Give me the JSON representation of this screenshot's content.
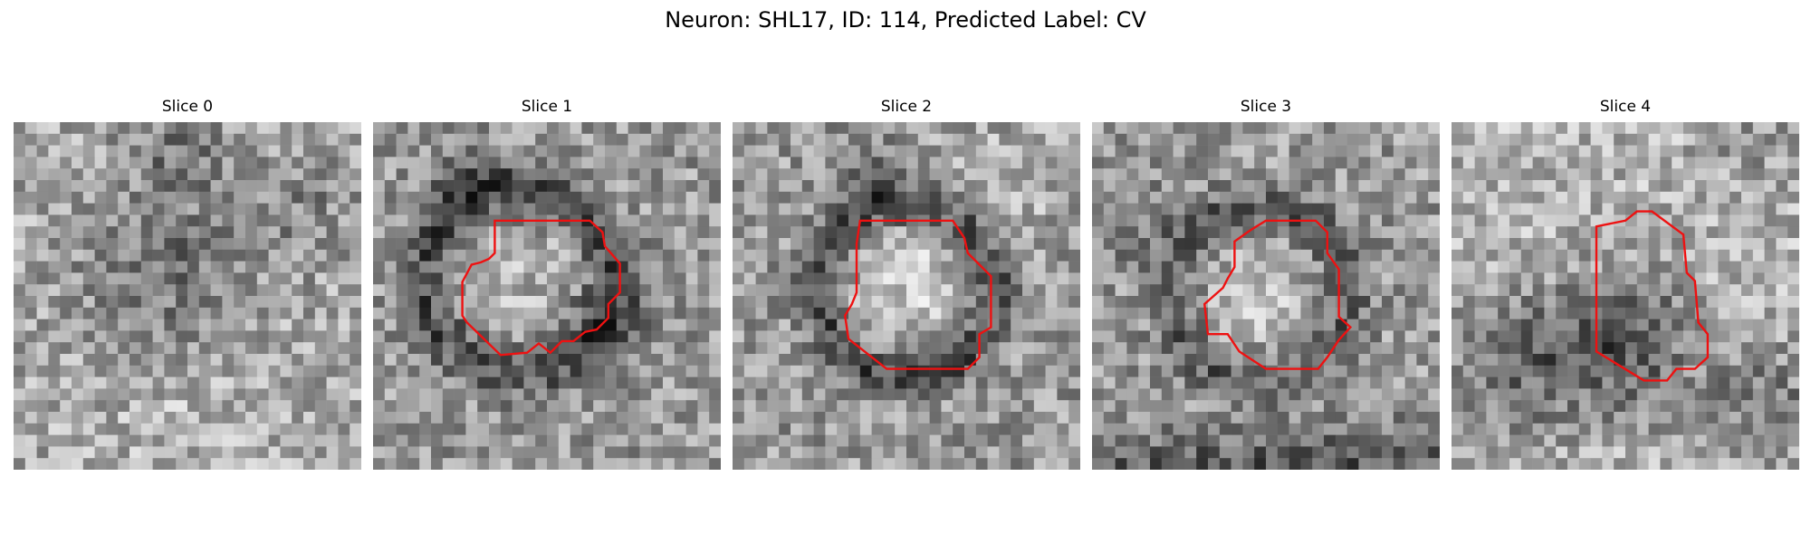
{
  "figure": {
    "title": "Neuron: SHL17, ID: 114, Predicted Label: CV"
  },
  "slices": [
    {
      "title": "Slice 0",
      "has_outline": false
    },
    {
      "title": "Slice 1",
      "has_outline": true
    },
    {
      "title": "Slice 2",
      "has_outline": true
    },
    {
      "title": "Slice 3",
      "has_outline": true
    },
    {
      "title": "Slice 4",
      "has_outline": true
    }
  ],
  "style": {
    "outline_color": "#ee1111",
    "colormap": "grayscale"
  }
}
